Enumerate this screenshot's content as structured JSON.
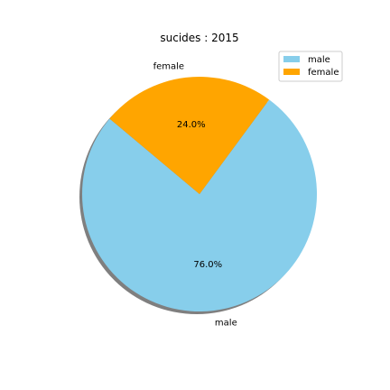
{
  "chart_data": {
    "type": "pie",
    "title": "sucides : 2015",
    "slices": [
      {
        "label": "male",
        "value": 76.0,
        "pct_label": "76.0%",
        "color": "#87ceeb"
      },
      {
        "label": "female",
        "value": 24.0,
        "pct_label": "24.0%",
        "color": "#ffa500"
      }
    ],
    "start_angle_deg": 140,
    "direction": "counterclockwise",
    "shadow": true,
    "legend": {
      "placement": "top-right",
      "entries": [
        "male",
        "female"
      ]
    }
  }
}
